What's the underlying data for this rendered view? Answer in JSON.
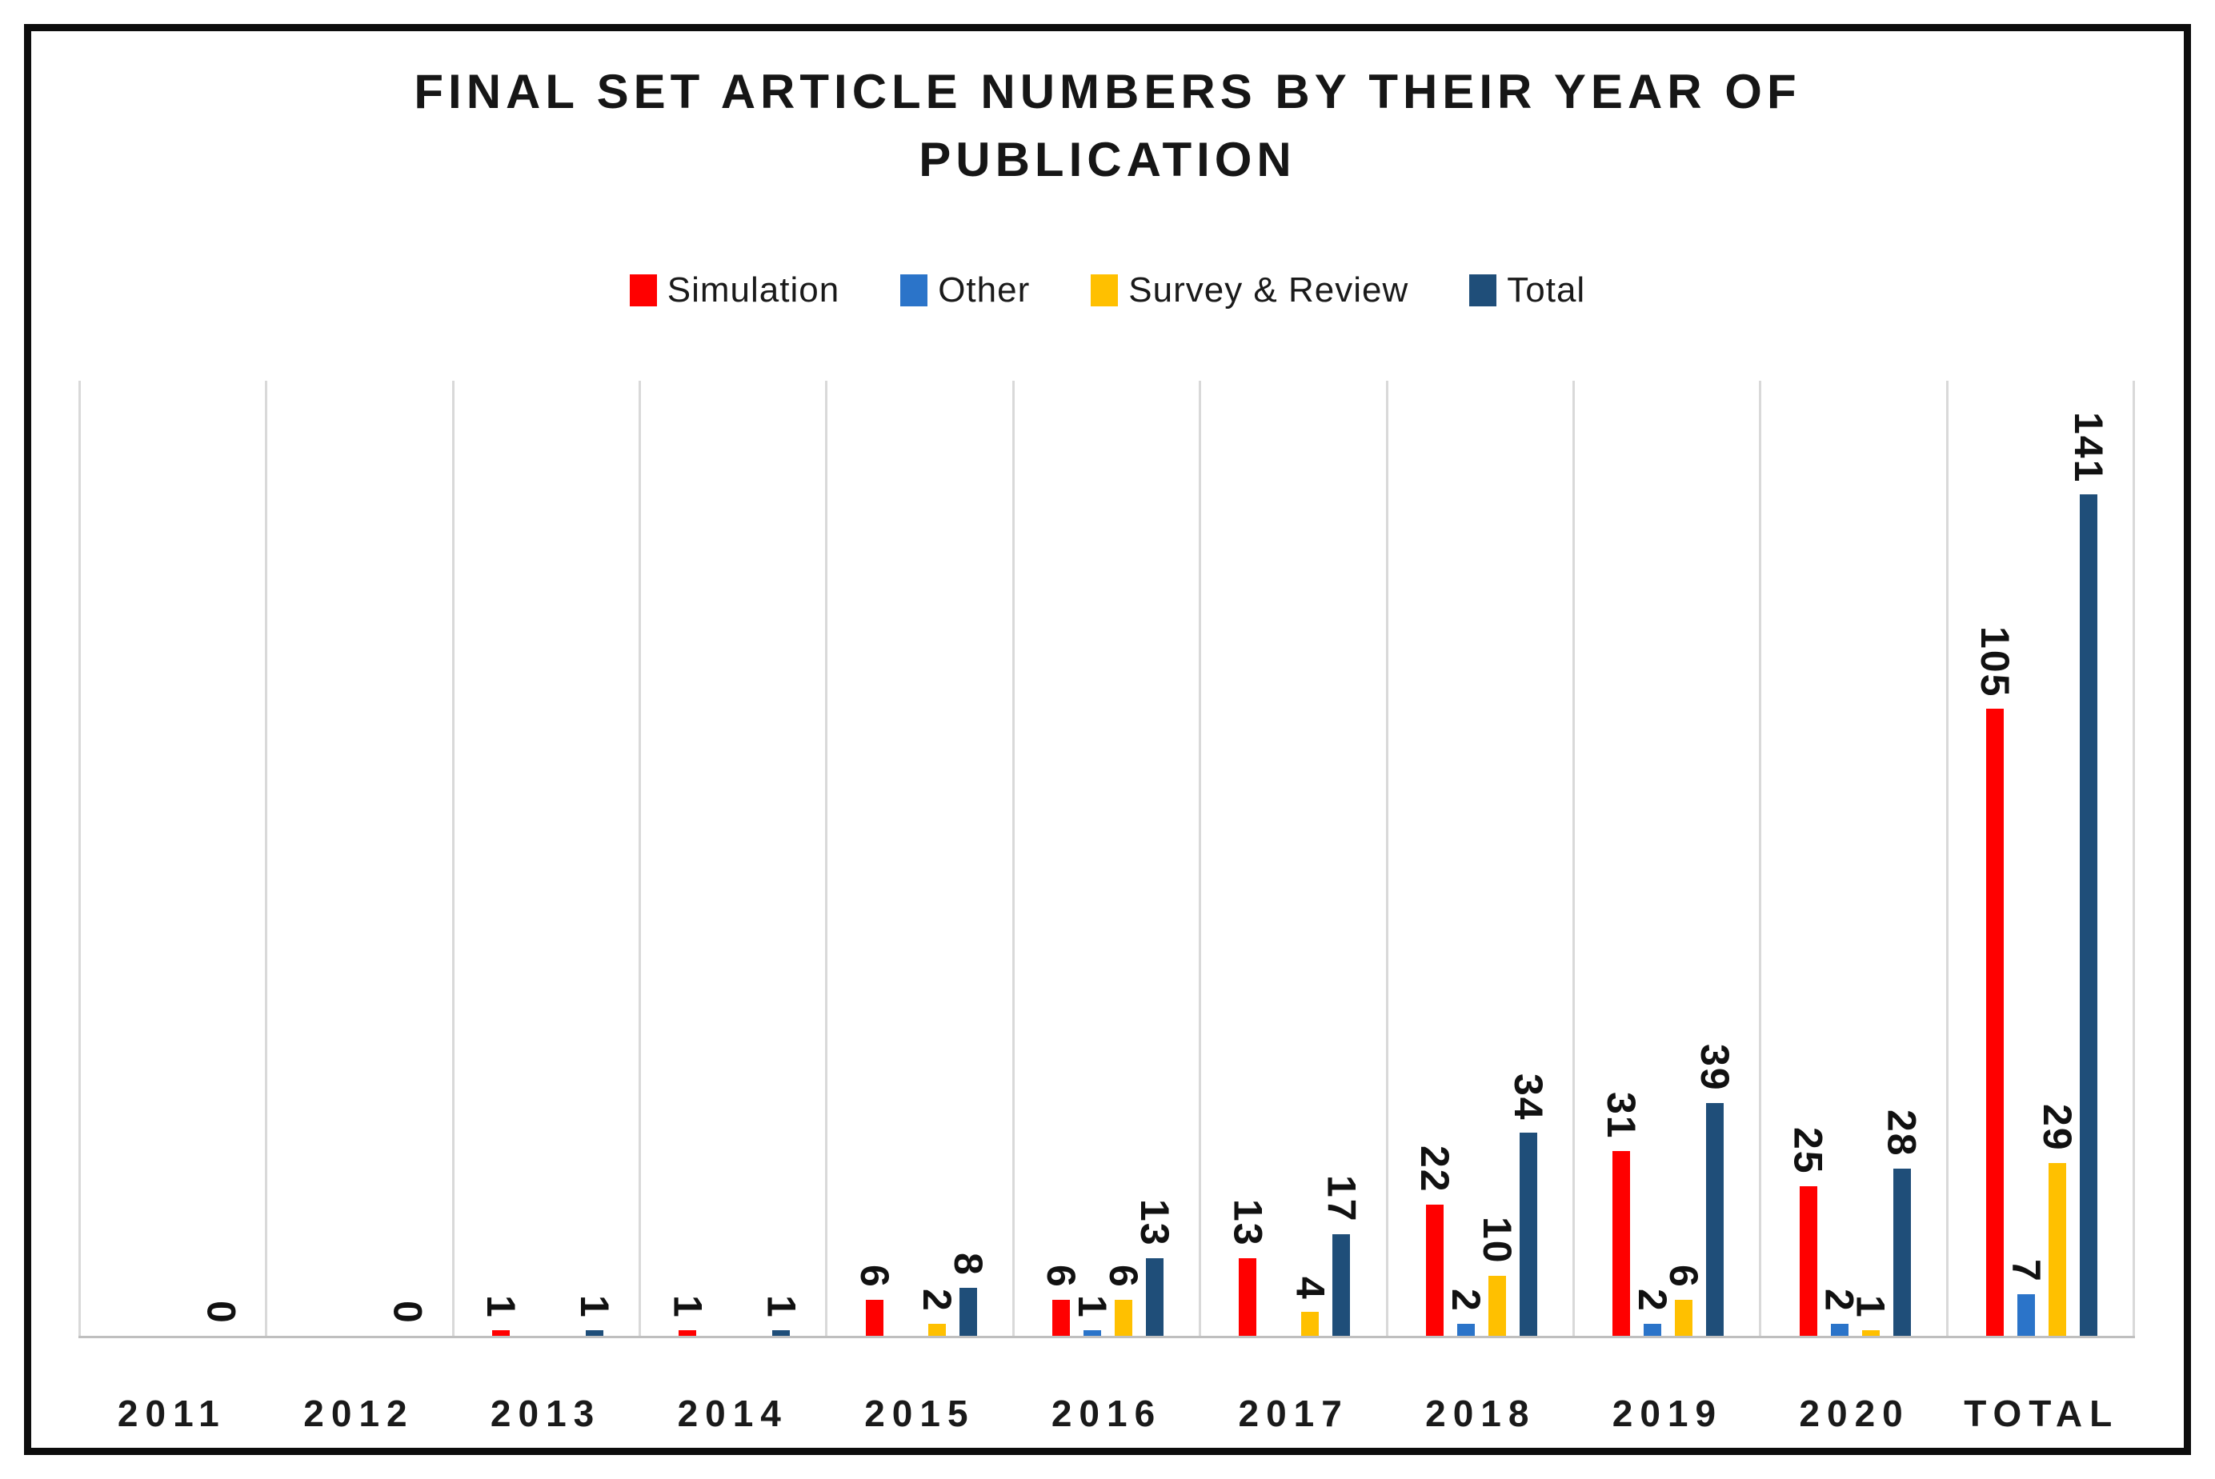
{
  "title": "FINAL SET ARTICLE NUMBERS BY THEIR YEAR OF PUBLICATION",
  "colors": {
    "simulation": "#ff0000",
    "other": "#2b74c9",
    "survey_review": "#ffc000",
    "total": "#1f4e79",
    "gridline": "#d9d9d9",
    "axis_line": "#bfbfbf",
    "text": "#161616",
    "frame_border": "#0d0d0d"
  },
  "chart_data": {
    "type": "bar",
    "title": "FINAL SET ARTICLE NUMBERS BY THEIR YEAR OF PUBLICATION",
    "categories": [
      "2011",
      "2012",
      "2013",
      "2014",
      "2015",
      "2016",
      "2017",
      "2018",
      "2019",
      "2020",
      "TOTAL"
    ],
    "series": [
      {
        "name": "Simulation",
        "color": "#ff0000",
        "always_label": false,
        "values": [
          0,
          0,
          1,
          1,
          6,
          6,
          13,
          22,
          31,
          25,
          105
        ]
      },
      {
        "name": "Other",
        "color": "#2b74c9",
        "always_label": false,
        "values": [
          0,
          0,
          0,
          0,
          0,
          1,
          0,
          2,
          2,
          2,
          7
        ]
      },
      {
        "name": "Survey & Review",
        "color": "#ffc000",
        "always_label": false,
        "values": [
          0,
          0,
          0,
          0,
          2,
          6,
          4,
          10,
          6,
          1,
          29
        ]
      },
      {
        "name": "Total",
        "color": "#1f4e79",
        "always_label": true,
        "values": [
          0,
          0,
          1,
          1,
          8,
          13,
          17,
          34,
          39,
          28,
          141
        ]
      }
    ],
    "ylim": [
      0,
      160
    ],
    "xlabel": "",
    "ylabel": "",
    "grid": "vertical-only",
    "legend_position": "top",
    "data_labels": "rotated-vertical, shown for non-zero values; Total series labeled even when 0"
  }
}
